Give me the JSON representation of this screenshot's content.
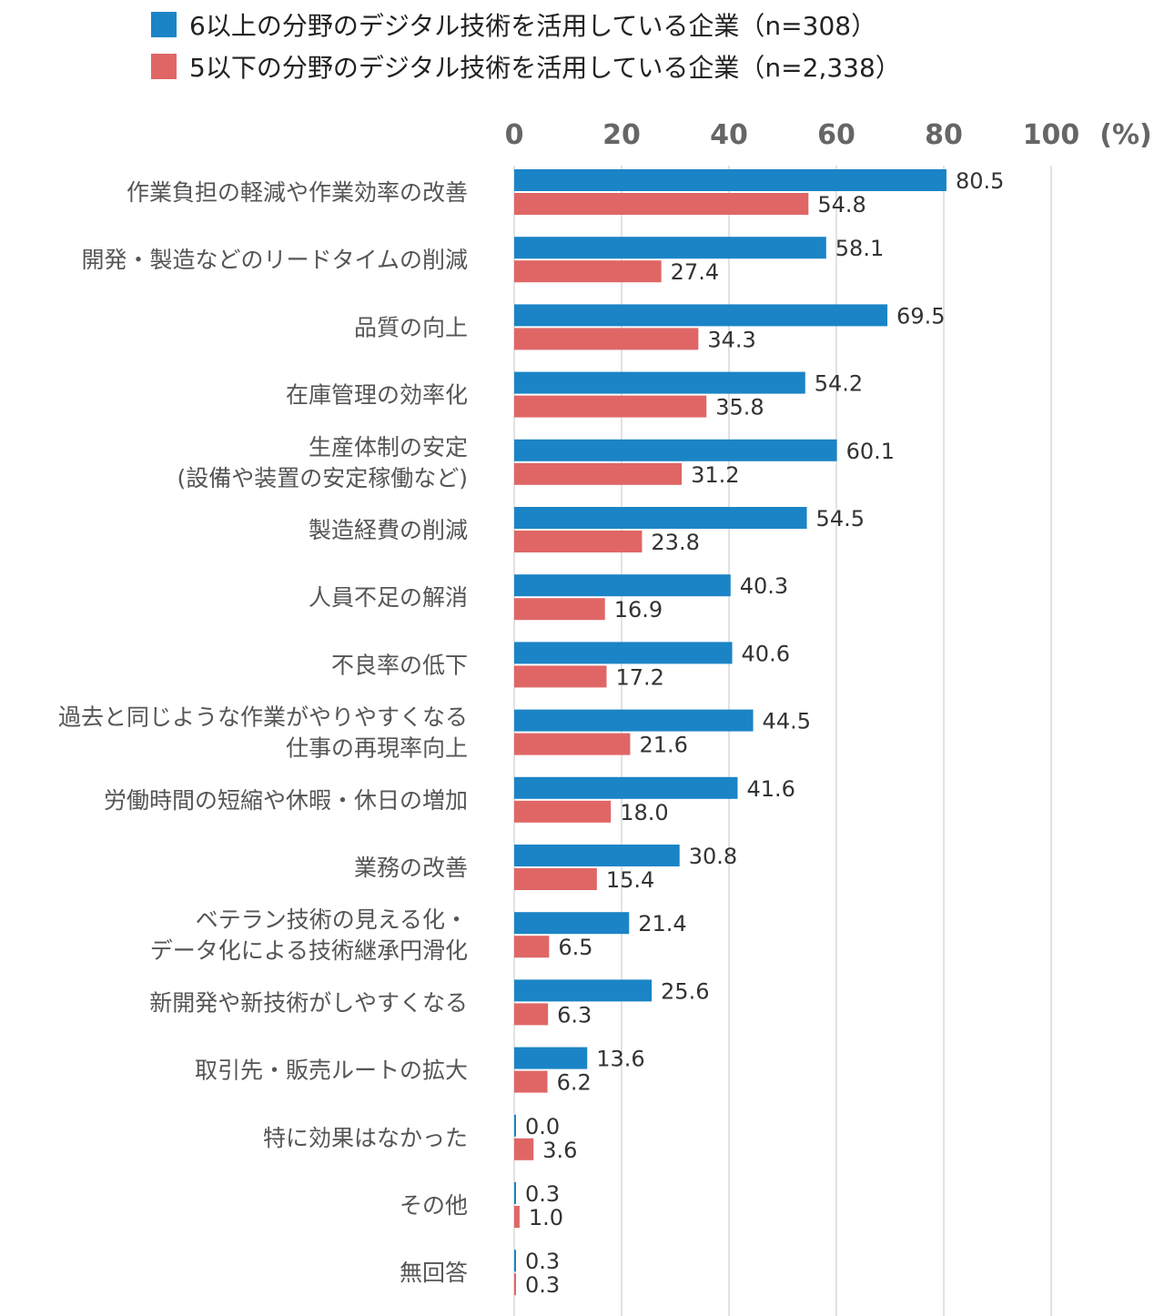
{
  "legend": [
    {
      "label": "6以上の分野のデジタル技術を活用している企業（n=308）",
      "color": "#1b84c6"
    },
    {
      "label": "5以下の分野のデジタル技術を活用している企業（n=2,338）",
      "color": "#e06666"
    }
  ],
  "chart_data": {
    "type": "bar",
    "orientation": "horizontal",
    "unit_label": "(%)",
    "xlim": [
      0,
      100
    ],
    "ticks": [
      0,
      20,
      40,
      60,
      80,
      100
    ],
    "grid": true,
    "categories": [
      [
        "作業負担の軽減や作業効率の改善"
      ],
      [
        "開発・製造などのリードタイムの削減"
      ],
      [
        "品質の向上"
      ],
      [
        "在庫管理の効率化"
      ],
      [
        "生産体制の安定",
        "(設備や装置の安定稼働など)"
      ],
      [
        "製造経費の削減"
      ],
      [
        "人員不足の解消"
      ],
      [
        "不良率の低下"
      ],
      [
        "過去と同じような作業がやりやすくなる",
        "仕事の再現率向上"
      ],
      [
        "労働時間の短縮や休暇・休日の増加"
      ],
      [
        "業務の改善"
      ],
      [
        "ベテラン技術の見える化・",
        "データ化による技術継承円滑化"
      ],
      [
        "新開発や新技術がしやすくなる"
      ],
      [
        "取引先・販売ルートの拡大"
      ],
      [
        "特に効果はなかった"
      ],
      [
        "その他"
      ],
      [
        "無回答"
      ]
    ],
    "series": [
      {
        "name": "6以上の分野のデジタル技術を活用している企業（n=308）",
        "color": "#1b84c6",
        "values": [
          80.5,
          58.1,
          69.5,
          54.2,
          60.1,
          54.5,
          40.3,
          40.6,
          44.5,
          41.6,
          30.8,
          21.4,
          25.6,
          13.6,
          0.0,
          0.3,
          0.3
        ]
      },
      {
        "name": "5以下の分野のデジタル技術を活用している企業（n=2,338）",
        "color": "#e06666",
        "values": [
          54.8,
          27.4,
          34.3,
          35.8,
          31.2,
          23.8,
          16.9,
          17.2,
          21.6,
          18.0,
          15.4,
          6.5,
          6.3,
          6.2,
          3.6,
          1.0,
          0.3
        ]
      }
    ]
  }
}
